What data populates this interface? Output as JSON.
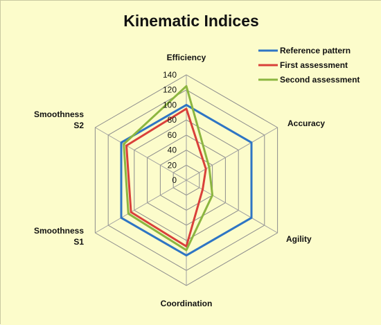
{
  "colors": {
    "background": "#FCFCCB",
    "grid": "#8C8C8C",
    "spoke": "#A0A0A0"
  },
  "chart_data": {
    "type": "radar",
    "title": "Kinematic Indices",
    "axes": [
      [
        "Efficiency"
      ],
      [
        "Accuracy"
      ],
      [
        "Agility"
      ],
      [
        "Coordination"
      ],
      [
        "Smoothness",
        "S1"
      ],
      [
        "Smoothness",
        "S2"
      ]
    ],
    "rlim": [
      0,
      140
    ],
    "ticks": [
      0,
      20,
      40,
      60,
      80,
      100,
      120,
      140
    ],
    "grid": true,
    "legend_position": "top-right",
    "series": [
      {
        "name": "Reference pattern",
        "color": "#2E75C4",
        "values": [
          100,
          100,
          100,
          100,
          100,
          100
        ]
      },
      {
        "name": "First assessment",
        "color": "#D9403A",
        "values": [
          95,
          30,
          25,
          88,
          85,
          92
        ]
      },
      {
        "name": "Second assessment",
        "color": "#8CB640",
        "values": [
          125,
          35,
          40,
          93,
          89,
          96
        ]
      }
    ]
  }
}
